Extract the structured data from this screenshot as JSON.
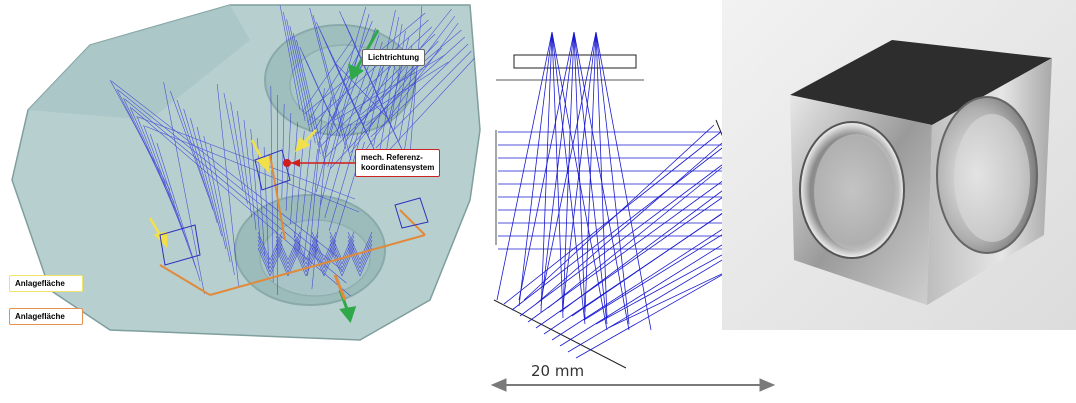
{
  "cad_view": {
    "label_lichtrichtung": "Lichtrichtung",
    "label_referenz_line1": "mech. Referenz-",
    "label_referenz_line2": "koordinatensystem",
    "label_anlage_yellow": "Anlagefläche",
    "label_anlage_orange": "Anlagefläche",
    "colors": {
      "body": "#b4cfcf",
      "rays": "#2a2ad8",
      "yellow": "#f2e04a",
      "orange": "#e08a3c",
      "red": "#d01c1c",
      "green": "#2fa84a"
    }
  },
  "ray_trace": {
    "scale_label": "20 mm",
    "colors": {
      "rays": "#1a1ad0",
      "arrow": "#7a7a7a"
    }
  },
  "photo": {
    "colors": {
      "metal": "#c8c8c8",
      "top": "#2a2a2a"
    }
  }
}
